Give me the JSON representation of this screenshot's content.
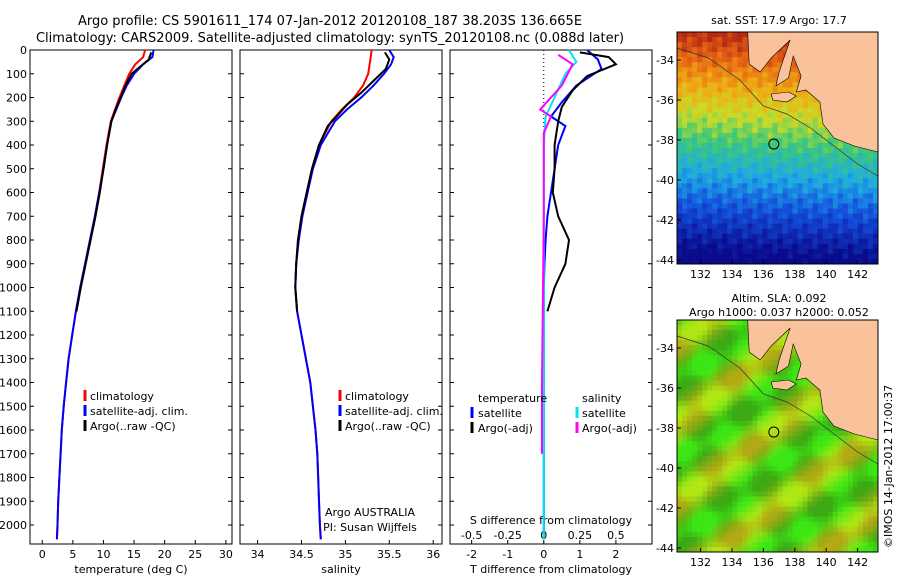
{
  "header": {
    "line1": "Argo profile: CS 5901611_174 07-Jan-2012 20120108_187 38.203S 136.665E",
    "line2": "Climatology: CARS2009. Satellite-adjusted climatology: synTS_20120108.nc (0.088d later)"
  },
  "maps": {
    "sst_title": "sat. SST: 17.9 Argo: 17.7",
    "sla_title_1": "Altim. SLA: 0.092",
    "sla_title_2": "Argo h1000: 0.037 h2000: 0.052",
    "lat_ticks": [
      "-34",
      "-36",
      "-38",
      "-40",
      "-42",
      "-44"
    ],
    "lon_ticks": [
      "132",
      "134",
      "136",
      "138",
      "140",
      "142"
    ],
    "float_marker": {
      "lon": 136.665,
      "lat": -38.203
    }
  },
  "credit": "©IMOS 14-Jan-2012 17:00:37",
  "colors": {
    "climatology": "#ff0000",
    "satellite": "#0000ff",
    "argo": "#000000",
    "salinity_sat": "#00e5ee",
    "salinity_argo": "#ff00ff",
    "land": "#f9c29a"
  },
  "chart_data": [
    {
      "type": "line",
      "name": "temperature",
      "xlabel": "temperature (deg C)",
      "ylabel": "",
      "xlim": [
        -2,
        31
      ],
      "ylim": [
        0,
        2080
      ],
      "y_reversed": true,
      "xticks": [
        0,
        5,
        10,
        15,
        20,
        25,
        30
      ],
      "yticks": [
        0,
        100,
        200,
        300,
        400,
        500,
        600,
        700,
        800,
        900,
        1000,
        1100,
        1200,
        1300,
        1400,
        1500,
        1600,
        1700,
        1800,
        1900,
        2000
      ],
      "legend": [
        "climatology",
        "satellite-adj. clim.",
        "Argo(..raw -QC)"
      ],
      "series": [
        {
          "name": "climatology",
          "color": "#ff0000",
          "points": [
            [
              16.8,
              0
            ],
            [
              16.5,
              30
            ],
            [
              15.2,
              60
            ],
            [
              14.2,
              100
            ],
            [
              13.4,
              150
            ],
            [
              12.6,
              200
            ],
            [
              11.9,
              250
            ],
            [
              11.2,
              300
            ],
            [
              10.5,
              400
            ],
            [
              9.9,
              500
            ],
            [
              9.3,
              600
            ],
            [
              8.6,
              700
            ],
            [
              7.8,
              800
            ],
            [
              7.0,
              900
            ],
            [
              6.2,
              1000
            ],
            [
              5.5,
              1100
            ],
            [
              4.9,
              1200
            ],
            [
              4.3,
              1300
            ],
            [
              3.9,
              1400
            ],
            [
              3.5,
              1500
            ],
            [
              3.2,
              1600
            ],
            [
              3.0,
              1700
            ],
            [
              2.8,
              1800
            ],
            [
              2.6,
              1900
            ],
            [
              2.5,
              2000
            ],
            [
              2.4,
              2060
            ]
          ]
        },
        {
          "name": "satellite-adj. clim.",
          "color": "#0000ff",
          "points": [
            [
              18.2,
              0
            ],
            [
              18.0,
              30
            ],
            [
              16.5,
              60
            ],
            [
              15.0,
              100
            ],
            [
              13.8,
              150
            ],
            [
              12.9,
              200
            ],
            [
              12.1,
              250
            ],
            [
              11.3,
              300
            ],
            [
              10.6,
              400
            ],
            [
              10.0,
              500
            ],
            [
              9.3,
              600
            ],
            [
              8.6,
              700
            ],
            [
              7.8,
              800
            ],
            [
              7.0,
              900
            ],
            [
              6.2,
              1000
            ],
            [
              5.5,
              1100
            ],
            [
              4.9,
              1200
            ],
            [
              4.3,
              1300
            ],
            [
              3.9,
              1400
            ],
            [
              3.5,
              1500
            ],
            [
              3.2,
              1600
            ],
            [
              3.0,
              1700
            ],
            [
              2.8,
              1800
            ],
            [
              2.6,
              1900
            ],
            [
              2.5,
              2000
            ],
            [
              2.4,
              2060
            ]
          ]
        },
        {
          "name": "Argo(..raw -QC)",
          "color": "#000000",
          "points": [
            [
              17.8,
              10
            ],
            [
              17.4,
              40
            ],
            [
              16.0,
              70
            ],
            [
              14.6,
              100
            ],
            [
              13.6,
              150
            ],
            [
              12.8,
              200
            ],
            [
              12.0,
              250
            ],
            [
              11.3,
              300
            ],
            [
              10.6,
              400
            ],
            [
              10.0,
              500
            ],
            [
              9.4,
              600
            ],
            [
              8.7,
              700
            ],
            [
              7.9,
              800
            ],
            [
              7.1,
              900
            ],
            [
              6.3,
              1000
            ],
            [
              5.6,
              1100
            ]
          ]
        }
      ]
    },
    {
      "type": "line",
      "name": "salinity",
      "xlabel": "salinity",
      "ylabel": "",
      "xlim": [
        33.8,
        36.1
      ],
      "ylim": [
        0,
        2080
      ],
      "y_reversed": true,
      "xticks": [
        34,
        34.5,
        35,
        35.5,
        36
      ],
      "legend": [
        "climatology",
        "satellite-adj. clim.",
        "Argo(..raw -QC)"
      ],
      "annotation": [
        "Argo AUSTRALIA",
        "PI: Susan Wijffels"
      ],
      "series": [
        {
          "name": "climatology",
          "color": "#ff0000",
          "points": [
            [
              35.3,
              0
            ],
            [
              35.28,
              50
            ],
            [
              35.26,
              100
            ],
            [
              35.2,
              150
            ],
            [
              35.1,
              200
            ],
            [
              34.96,
              250
            ],
            [
              34.84,
              300
            ],
            [
              34.7,
              400
            ],
            [
              34.62,
              500
            ],
            [
              34.56,
              600
            ],
            [
              34.5,
              700
            ],
            [
              34.46,
              800
            ],
            [
              34.44,
              900
            ],
            [
              34.43,
              1000
            ],
            [
              34.45,
              1100
            ],
            [
              34.5,
              1200
            ],
            [
              34.55,
              1300
            ],
            [
              34.6,
              1400
            ],
            [
              34.63,
              1500
            ],
            [
              34.66,
              1600
            ],
            [
              34.68,
              1700
            ],
            [
              34.69,
              1800
            ],
            [
              34.7,
              1900
            ],
            [
              34.71,
              2000
            ],
            [
              34.72,
              2060
            ]
          ]
        },
        {
          "name": "satellite-adj. clim.",
          "color": "#0000ff",
          "points": [
            [
              35.5,
              0
            ],
            [
              35.55,
              30
            ],
            [
              35.52,
              60
            ],
            [
              35.44,
              100
            ],
            [
              35.32,
              150
            ],
            [
              35.18,
              200
            ],
            [
              35.02,
              250
            ],
            [
              34.88,
              300
            ],
            [
              34.72,
              400
            ],
            [
              34.63,
              500
            ],
            [
              34.57,
              600
            ],
            [
              34.51,
              700
            ],
            [
              34.47,
              800
            ],
            [
              34.44,
              900
            ],
            [
              34.43,
              1000
            ],
            [
              34.45,
              1100
            ],
            [
              34.5,
              1200
            ],
            [
              34.55,
              1300
            ],
            [
              34.6,
              1400
            ],
            [
              34.63,
              1500
            ],
            [
              34.66,
              1600
            ],
            [
              34.68,
              1700
            ],
            [
              34.69,
              1800
            ],
            [
              34.7,
              1900
            ],
            [
              34.71,
              2000
            ],
            [
              34.72,
              2060
            ]
          ]
        },
        {
          "name": "Argo(..raw -QC)",
          "color": "#000000",
          "points": [
            [
              35.45,
              10
            ],
            [
              35.5,
              40
            ],
            [
              35.46,
              80
            ],
            [
              35.32,
              130
            ],
            [
              35.18,
              180
            ],
            [
              35.02,
              230
            ],
            [
              34.9,
              280
            ],
            [
              34.8,
              320
            ],
            [
              34.7,
              400
            ],
            [
              34.62,
              500
            ],
            [
              34.56,
              600
            ],
            [
              34.5,
              700
            ],
            [
              34.46,
              800
            ],
            [
              34.44,
              900
            ],
            [
              34.43,
              1000
            ],
            [
              34.45,
              1100
            ]
          ]
        }
      ]
    },
    {
      "type": "line",
      "name": "difference",
      "xlabel": "T difference from climatology",
      "xlabel_top": "S difference from climatology",
      "xlim": [
        -2.6,
        3.0
      ],
      "ylim": [
        0,
        2080
      ],
      "y_reversed": true,
      "xticks": [
        -2,
        -1,
        0,
        1,
        2
      ],
      "xticks_top": [
        -0.5,
        -0.25,
        0,
        0.25,
        0.5
      ],
      "legend_temperature": [
        "temperature",
        "satellite",
        "Argo(-adj)"
      ],
      "legend_salinity": [
        "salinity",
        "satellite",
        "Argo(-adj)"
      ],
      "series": [
        {
          "name": "T satellite",
          "color": "#0000ff",
          "points": [
            [
              1.2,
              0
            ],
            [
              1.5,
              40
            ],
            [
              1.6,
              80
            ],
            [
              0.9,
              150
            ],
            [
              0.5,
              220
            ],
            [
              0.2,
              280
            ],
            [
              0.6,
              320
            ],
            [
              0.4,
              400
            ],
            [
              0.3,
              500
            ],
            [
              0.2,
              600
            ],
            [
              0.1,
              700
            ],
            [
              0.05,
              800
            ],
            [
              0.02,
              900
            ],
            [
              0.0,
              1000
            ],
            [
              0.0,
              1500
            ],
            [
              0.0,
              2060
            ]
          ]
        },
        {
          "name": "T Argo(-adj)",
          "color": "#000000",
          "points": [
            [
              1.0,
              10
            ],
            [
              1.8,
              30
            ],
            [
              2.0,
              60
            ],
            [
              1.2,
              110
            ],
            [
              0.8,
              170
            ],
            [
              0.5,
              240
            ],
            [
              0.4,
              300
            ],
            [
              0.3,
              400
            ],
            [
              0.3,
              500
            ],
            [
              0.25,
              600
            ],
            [
              0.4,
              700
            ],
            [
              0.7,
              800
            ],
            [
              0.6,
              900
            ],
            [
              0.3,
              1000
            ],
            [
              0.1,
              1100
            ]
          ]
        },
        {
          "name": "S satellite",
          "color": "#00e5ee",
          "points": [
            [
              0.7,
              0
            ],
            [
              0.9,
              50
            ],
            [
              0.6,
              100
            ],
            [
              0.3,
              200
            ],
            [
              0.05,
              280
            ],
            [
              0.0,
              400
            ],
            [
              0.0,
              2060
            ]
          ]
        },
        {
          "name": "S Argo(-adj)",
          "color": "#ff00ff",
          "points": [
            [
              0.4,
              20
            ],
            [
              0.8,
              60
            ],
            [
              0.5,
              150
            ],
            [
              -0.1,
              250
            ],
            [
              0.2,
              280
            ],
            [
              0.0,
              350
            ],
            [
              0.0,
              700
            ],
            [
              -0.05,
              1400
            ],
            [
              -0.05,
              1700
            ]
          ]
        }
      ]
    }
  ]
}
